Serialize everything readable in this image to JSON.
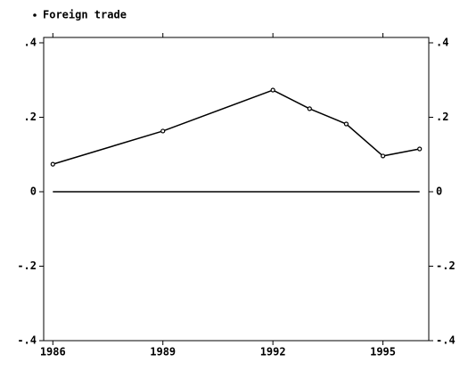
{
  "chart_data": {
    "type": "line",
    "x": [
      1986,
      1989,
      1992,
      1993,
      1994,
      1995,
      1996
    ],
    "series": [
      {
        "name": "Foreign trade",
        "color": "#000000",
        "values": [
          0.074,
          0.163,
          0.273,
          0.223,
          0.182,
          0.096,
          0.115
        ]
      }
    ],
    "xlim": [
      1985.75,
      1996.25
    ],
    "xticks": [
      1986,
      1989,
      1992,
      1995
    ],
    "ylim": [
      -0.4,
      0.4
    ],
    "yticks": [
      {
        "value": -0.4,
        "label": "-.4"
      },
      {
        "value": -0.2,
        "label": "-.2"
      },
      0,
      {
        "value": 0.2,
        "label": ".2"
      },
      {
        "value": 0.4,
        "label": ".4"
      }
    ],
    "yline": 0,
    "legend": "top-left"
  }
}
